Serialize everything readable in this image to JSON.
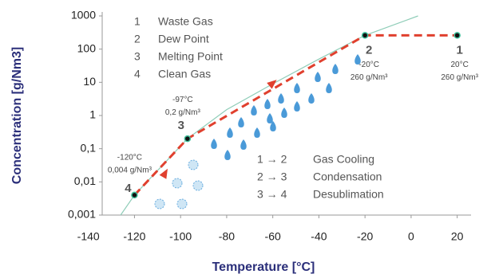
{
  "chart_data": {
    "type": "line",
    "xlabel": "Temperature [°C]",
    "ylabel": "Concentration [g/Nm3]",
    "xlim": [
      -134,
      26
    ],
    "xticks": [
      -140,
      -120,
      -100,
      -80,
      -60,
      -40,
      -20,
      0,
      20
    ],
    "ylim": [
      0.001,
      1000
    ],
    "yscale": "log",
    "yticks": [
      {
        "value": 0.001,
        "label": "0,001"
      },
      {
        "value": 0.01,
        "label": "0,01"
      },
      {
        "value": 0.1,
        "label": "0,1"
      },
      1,
      10,
      100,
      1000
    ],
    "grid": false,
    "series": [
      {
        "color": "#8fcdb8",
        "x": [
          -126,
          -120,
          -97,
          -80,
          -60,
          -40,
          -20,
          3
        ],
        "values": [
          0.001,
          0.004,
          0.2,
          1.5,
          9,
          50,
          260,
          1000
        ]
      },
      {
        "color": "#e0402e",
        "dashed": true,
        "x": [
          -120,
          -97,
          -20,
          20
        ],
        "values": [
          0.004,
          0.2,
          260,
          260
        ],
        "point_labels": [
          "4",
          "3",
          "2",
          "1"
        ],
        "point_annotations": [
          [
            "-120°C",
            "0,004 g/Nm³"
          ],
          [
            "-97°C",
            "0,2 g/Nm³"
          ],
          [
            "-20°C",
            "260 g/Nm³"
          ],
          [
            "20°C",
            "260 g/Nm³"
          ]
        ]
      }
    ],
    "steps": [
      {
        "number": "1",
        "text": "Waste Gas"
      },
      {
        "number": "2",
        "text": "Dew Point"
      },
      {
        "number": "3",
        "text": "Melting Point"
      },
      {
        "number": "4",
        "text": "Clean Gas"
      }
    ],
    "processes": [
      {
        "label": "1 → 2",
        "text": "Gas Cooling"
      },
      {
        "label": "2 → 3",
        "text": "Condensation"
      },
      {
        "label": "3 → 4",
        "text": "Desublimation"
      }
    ]
  }
}
